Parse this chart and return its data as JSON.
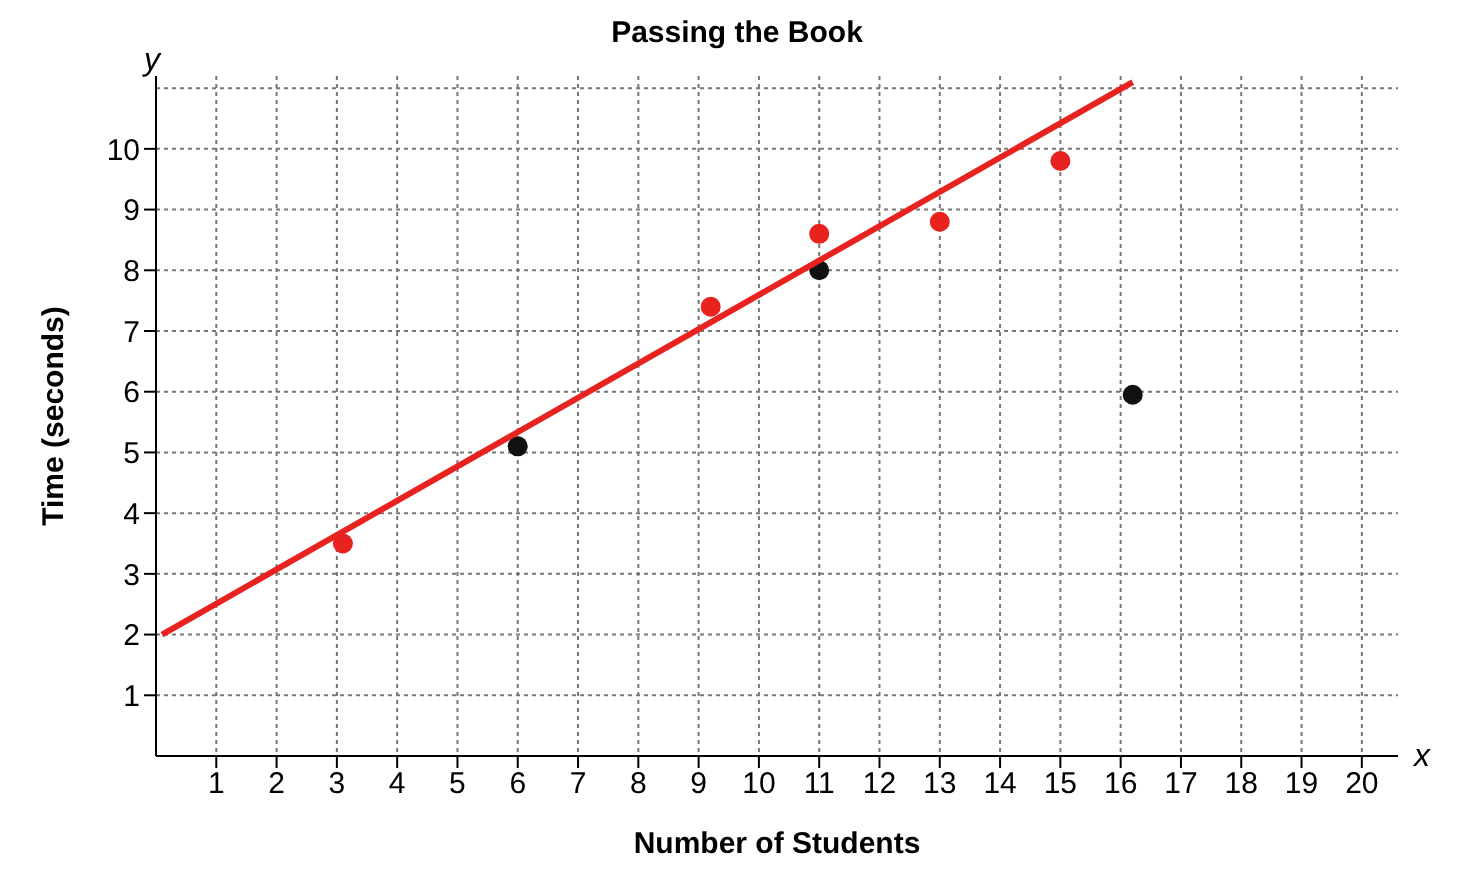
{
  "chart_data": {
    "type": "scatter",
    "title": "Passing the Book",
    "xlabel": "Number of Students",
    "ylabel": "Time (seconds)",
    "annotations": [
      "x",
      "y"
    ],
    "xlim": [
      0,
      20.6
    ],
    "xticks": [
      1,
      2,
      3,
      4,
      5,
      6,
      7,
      8,
      9,
      10,
      11,
      12,
      13,
      14,
      15,
      16,
      17,
      18,
      19,
      20
    ],
    "ylim": [
      0,
      11.2
    ],
    "yticks": [
      1,
      2,
      3,
      4,
      5,
      6,
      7,
      8,
      9,
      10
    ],
    "grid": true,
    "legend": false,
    "marker": "circle",
    "series": [
      {
        "color": "#e8231f",
        "x": [
          3.1,
          9.2,
          11,
          13,
          15
        ],
        "values": [
          3.5,
          7.4,
          8.6,
          8.8,
          9.8
        ]
      },
      {
        "color": "#111111",
        "x": [
          6,
          11,
          16.2
        ],
        "values": [
          5.1,
          8.0,
          5.95
        ]
      },
      {
        "type": "line",
        "color": "#e8231f",
        "marker": "none",
        "line_style": "solid",
        "x": [
          0.1,
          16.2
        ],
        "values": [
          2.0,
          11.1
        ]
      }
    ]
  }
}
